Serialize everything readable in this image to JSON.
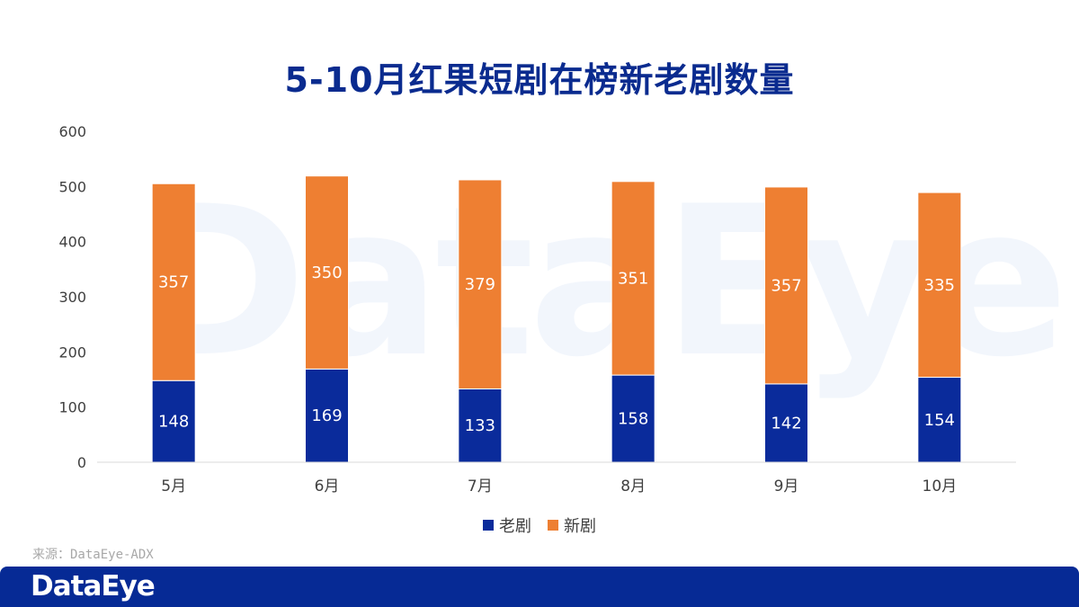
{
  "header": {
    "title": "5-10月红果短剧在榜新老剧数量"
  },
  "watermark": {
    "text": "DataEye"
  },
  "source": {
    "text": "来源：DataEye-ADX"
  },
  "footer": {
    "logo": "DataEye"
  },
  "colors": {
    "old": "#0a2b9b",
    "new": "#ee7f32",
    "axis": "#d9d9d9",
    "text": "#404040"
  },
  "chart_data": {
    "type": "bar",
    "stacked": true,
    "title": "5-10月红果短剧在榜新老剧数量",
    "categories": [
      "5月",
      "6月",
      "7月",
      "8月",
      "9月",
      "10月"
    ],
    "series": [
      {
        "name": "老剧",
        "values": [
          148,
          169,
          133,
          158,
          142,
          154
        ]
      },
      {
        "name": "新剧",
        "values": [
          357,
          350,
          379,
          351,
          357,
          335
        ]
      }
    ],
    "ylim": [
      0,
      600
    ],
    "yticks": [
      "0",
      "100",
      "200",
      "300",
      "400",
      "500",
      "600"
    ],
    "grid": false,
    "legend": "bottom",
    "data_labels": true
  }
}
